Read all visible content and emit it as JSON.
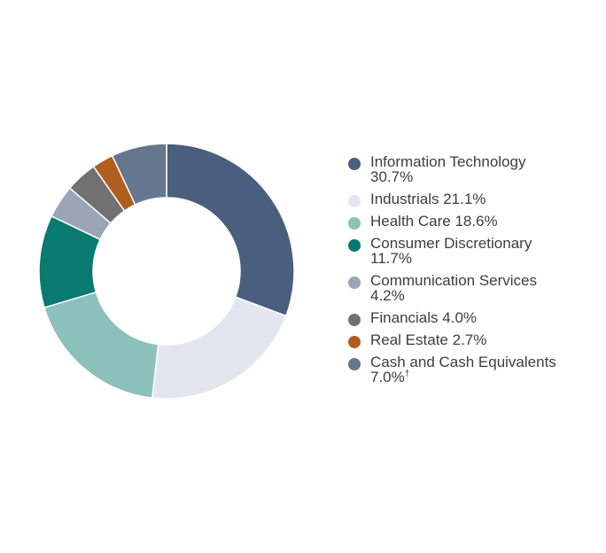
{
  "chart_data": {
    "type": "pie",
    "donut": true,
    "categories": [
      "Information Technology",
      "Industrials",
      "Health Care",
      "Consumer Discretionary",
      "Communication Services",
      "Financials",
      "Real Estate",
      "Cash and Cash Equivalents"
    ],
    "values": [
      30.7,
      21.1,
      18.6,
      11.7,
      4.2,
      4.0,
      2.7,
      7.0
    ],
    "value_labels": [
      "30.7%",
      "21.1%",
      "18.6%",
      "11.7%",
      "4.2%",
      "4.0%",
      "2.7%",
      "7.0%"
    ],
    "notes": [
      "",
      "",
      "",
      "",
      "",
      "",
      "",
      "†"
    ],
    "colors": [
      "#4a5f7e",
      "#e3e6ee",
      "#8cc0bb",
      "#087a70",
      "#9aa6b8",
      "#717171",
      "#b05e1f",
      "#66768f"
    ],
    "legend_position": "right"
  }
}
